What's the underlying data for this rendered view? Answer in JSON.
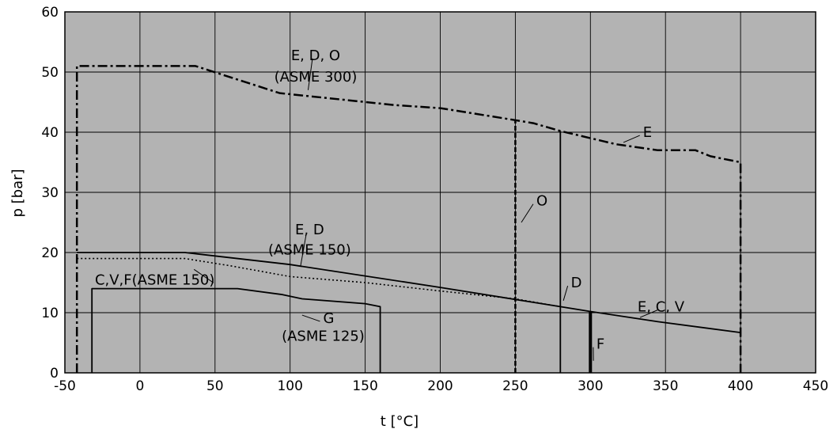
{
  "chart_data": {
    "type": "line",
    "xlabel": "t [°C]",
    "ylabel": "p [bar]",
    "xlim": [
      -50,
      450
    ],
    "ylim": [
      0,
      60
    ],
    "x_ticks": [
      -50,
      0,
      50,
      100,
      150,
      200,
      250,
      300,
      350,
      400,
      450
    ],
    "y_ticks": [
      0,
      10,
      20,
      30,
      40,
      50,
      60
    ],
    "grid": true,
    "background": "#b3b3b3",
    "series": [
      {
        "style": "dash-dot",
        "points": [
          [
            -42,
            0
          ],
          [
            -42,
            51
          ],
          [
            37,
            51
          ],
          [
            93,
            46.5
          ],
          [
            170,
            44.5
          ],
          [
            200,
            44
          ],
          [
            250,
            42
          ],
          [
            262,
            41.5
          ],
          [
            280,
            40.2
          ],
          [
            317,
            38
          ],
          [
            345,
            37
          ],
          [
            370,
            37
          ],
          [
            380,
            36
          ],
          [
            400,
            35
          ],
          [
            400,
            0
          ]
        ]
      },
      {
        "style": "dashed",
        "points": [
          [
            250,
            0
          ],
          [
            250,
            42
          ]
        ]
      },
      {
        "style": "solid",
        "points": [
          [
            -42,
            20
          ],
          [
            30,
            20
          ],
          [
            100,
            18
          ],
          [
            200,
            14.2
          ],
          [
            250,
            12.2
          ],
          [
            280,
            11
          ],
          [
            300,
            10.2
          ],
          [
            345,
            8.5
          ],
          [
            400,
            6.7
          ]
        ]
      },
      {
        "style": "dotted",
        "points": [
          [
            -42,
            19
          ],
          [
            30,
            19
          ],
          [
            60,
            17.8
          ],
          [
            100,
            16
          ],
          [
            150,
            15
          ],
          [
            200,
            13.6
          ],
          [
            250,
            12.3
          ],
          [
            280,
            11
          ]
        ]
      },
      {
        "style": "solid-thin",
        "points": [
          [
            280,
            0
          ],
          [
            280,
            40.2
          ]
        ]
      },
      {
        "style": "solid-thick",
        "points": [
          [
            300,
            0
          ],
          [
            300,
            10.2
          ]
        ]
      },
      {
        "style": "solid",
        "points": [
          [
            -32,
            0
          ],
          [
            -32,
            14
          ],
          [
            65,
            14
          ],
          [
            95,
            13
          ],
          [
            108,
            12.3
          ],
          [
            150,
            11.5
          ],
          [
            160,
            11
          ],
          [
            160,
            0
          ]
        ]
      }
    ],
    "annotations": [
      {
        "text": "E, D, O",
        "x": 117,
        "y": 52,
        "lead_x": 112,
        "lead_y": 47
      },
      {
        "text": "(ASME 300)",
        "x": 117,
        "y": 48.4
      },
      {
        "text": "E",
        "x": 335,
        "y": 39.2,
        "lead_x": 322,
        "lead_y": 38.3
      },
      {
        "text": "O",
        "x": 264,
        "y": 27.8,
        "lead_x": 254,
        "lead_y": 25
      },
      {
        "text": "E, D",
        "x": 113,
        "y": 23,
        "lead_x": 107,
        "lead_y": 17.8
      },
      {
        "text": "(ASME 150)",
        "x": 113,
        "y": 19.7
      },
      {
        "text": "C,V,F(ASME 150)",
        "x": -30,
        "y": 14.7,
        "lead_x": 36,
        "lead_y": 17.2
      },
      {
        "text": "D",
        "x": 287,
        "y": 14.2,
        "lead_x": 282,
        "lead_y": 12
      },
      {
        "text": "E, C, V",
        "x": 347,
        "y": 10.2,
        "lead_x": 333,
        "lead_y": 9.2
      },
      {
        "text": "G",
        "x": 122,
        "y": 8.3,
        "lead_x": 108,
        "lead_y": 9.6
      },
      {
        "text": "(ASME 125)",
        "x": 122,
        "y": 5.3
      },
      {
        "text": "F",
        "x": 304,
        "y": 4,
        "lead_x": 302,
        "lead_y": 2
      }
    ]
  }
}
